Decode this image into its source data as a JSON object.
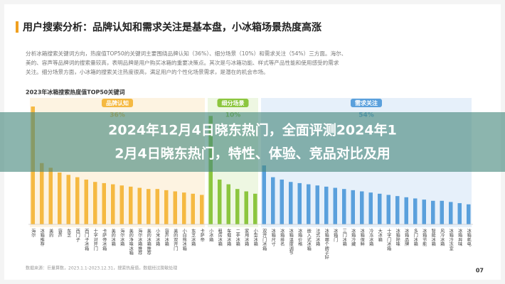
{
  "header": {
    "title": "用户搜索分析：品牌认知和需求关注是基本盘，小冰箱场景热度高涨"
  },
  "intro": {
    "lines": [
      "分析冰箱搜索关键词方向，热度值TOP50的关键词主要围绕品牌认知（36%）、细分场景（10%）和需求关注（54%）三方面。海尔、",
      "美的、容声等品牌词的搜索量较高，表明品牌是用户购买冰箱的重要决策点。其次是与冰箱功能、样式等产品性能和使用感受的需求",
      "关注。细分场景方面，小冰箱的搜索关注热度很高，满足用户的个性化场景需求，是潜在的机会市场。"
    ]
  },
  "chart_data": {
    "type": "bar",
    "title": "2023年冰箱搜索热度值TOP50关键词",
    "ylim": [
      0,
      100
    ],
    "groups": [
      {
        "name": "品牌认知",
        "share": 36,
        "share_label": "36%",
        "color": "#f5b942",
        "band": "#fdf3e1",
        "categories": [
          "海尔",
          "冰箱推荐",
          "美的",
          "容声",
          "东芝",
          "西门子",
          "西门子冰箱",
          "十字对开门",
          "卡萨帝冰箱",
          "美的冰箱",
          "海尔冰箱",
          "美的净味冰箱",
          "海尔冰箱推荐",
          "美的冰箱推荐",
          "小米冰箱",
          "容声冰箱",
          "美的双开门",
          "小白熊冰箱",
          "东芝冰箱",
          "卡萨帝"
        ],
        "values": [
          100,
          52,
          48,
          44,
          42,
          40,
          38,
          36,
          35,
          34,
          33,
          32,
          31,
          30,
          30,
          29,
          28,
          27,
          26,
          25
        ]
      },
      {
        "name": "细分场景",
        "share": 10,
        "share_label": "10%",
        "color": "#8cc63f",
        "band": "#eef7e2",
        "categories": [
          "小冰箱",
          "租房冰箱",
          "车载冰箱",
          "二手冰箱",
          "家用冰箱",
          "小型冰箱"
        ],
        "values": [
          92,
          38,
          34,
          30,
          28,
          26
        ]
      },
      {
        "name": "需求关注",
        "share": 54,
        "share_label": "54%",
        "color": "#5aa0dc",
        "band": "#e6f0fa",
        "categories": [
          "双开门冰箱",
          "冰箱尺寸",
          "冰箱排名",
          "冰箱温度调节",
          "冰箱价格",
          "嵌入式冰箱",
          "法式冰箱",
          "冰箱哪个牌子好",
          "冰箱门",
          "三门冰箱",
          "冰箱冷藏",
          "冰箱保鲜",
          "冷冻冰箱",
          "大冰箱",
          "十字门冰箱",
          "冰箱除味",
          "冰箱品牌",
          "多门冰箱",
          "冰箱节能",
          "智能冰箱",
          "风冷冰箱",
          "冰箱冷冻室",
          "冰箱异味",
          "冰箱耗电"
        ],
        "values": [
          50,
          40,
          38,
          36,
          35,
          34,
          33,
          32,
          31,
          30,
          29,
          28,
          27,
          26,
          25,
          24,
          23,
          22,
          21,
          20,
          20,
          19,
          18,
          17
        ]
      }
    ]
  },
  "banner": {
    "lines": [
      "2024年12月4日晓东热门，全面评测2024年1",
      "2月4日晓东热门，特性、体验、竞品对比及用"
    ]
  },
  "footer": {
    "source": "数据来源：巨量算数，2023.1.1-2023.12.31，搜索热度值，数据经过脱敏处理",
    "page": "07"
  }
}
